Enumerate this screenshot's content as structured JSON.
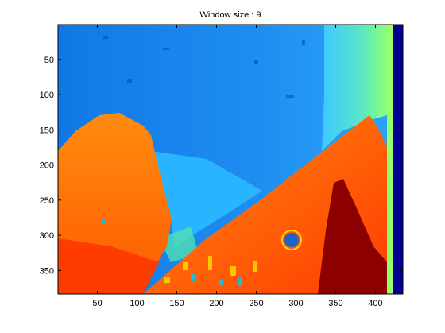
{
  "chart_data": {
    "type": "heatmap",
    "title": "Window size : 9",
    "xlabel": "",
    "ylabel": "",
    "xlim": [
      0.5,
      434.5
    ],
    "ylim": [
      0.5,
      383.5
    ],
    "y_reversed": true,
    "x_ticks": [
      50,
      100,
      150,
      200,
      250,
      300,
      350,
      400
    ],
    "y_ticks": [
      50,
      100,
      150,
      200,
      250,
      300,
      350
    ],
    "grid": false,
    "legend": "none",
    "colormap": "jet",
    "background_colors": {
      "sky": "#1e8cf0",
      "upper_right": "#3cc8ff",
      "far_right_band": "#8cff78",
      "right_border": "#000096",
      "left_cone": "#ff7814",
      "right_cone": "#ff6410",
      "ground": "#ff3c00",
      "shadow": "#8c0000",
      "mid_cyan": "#28b4ff"
    }
  }
}
